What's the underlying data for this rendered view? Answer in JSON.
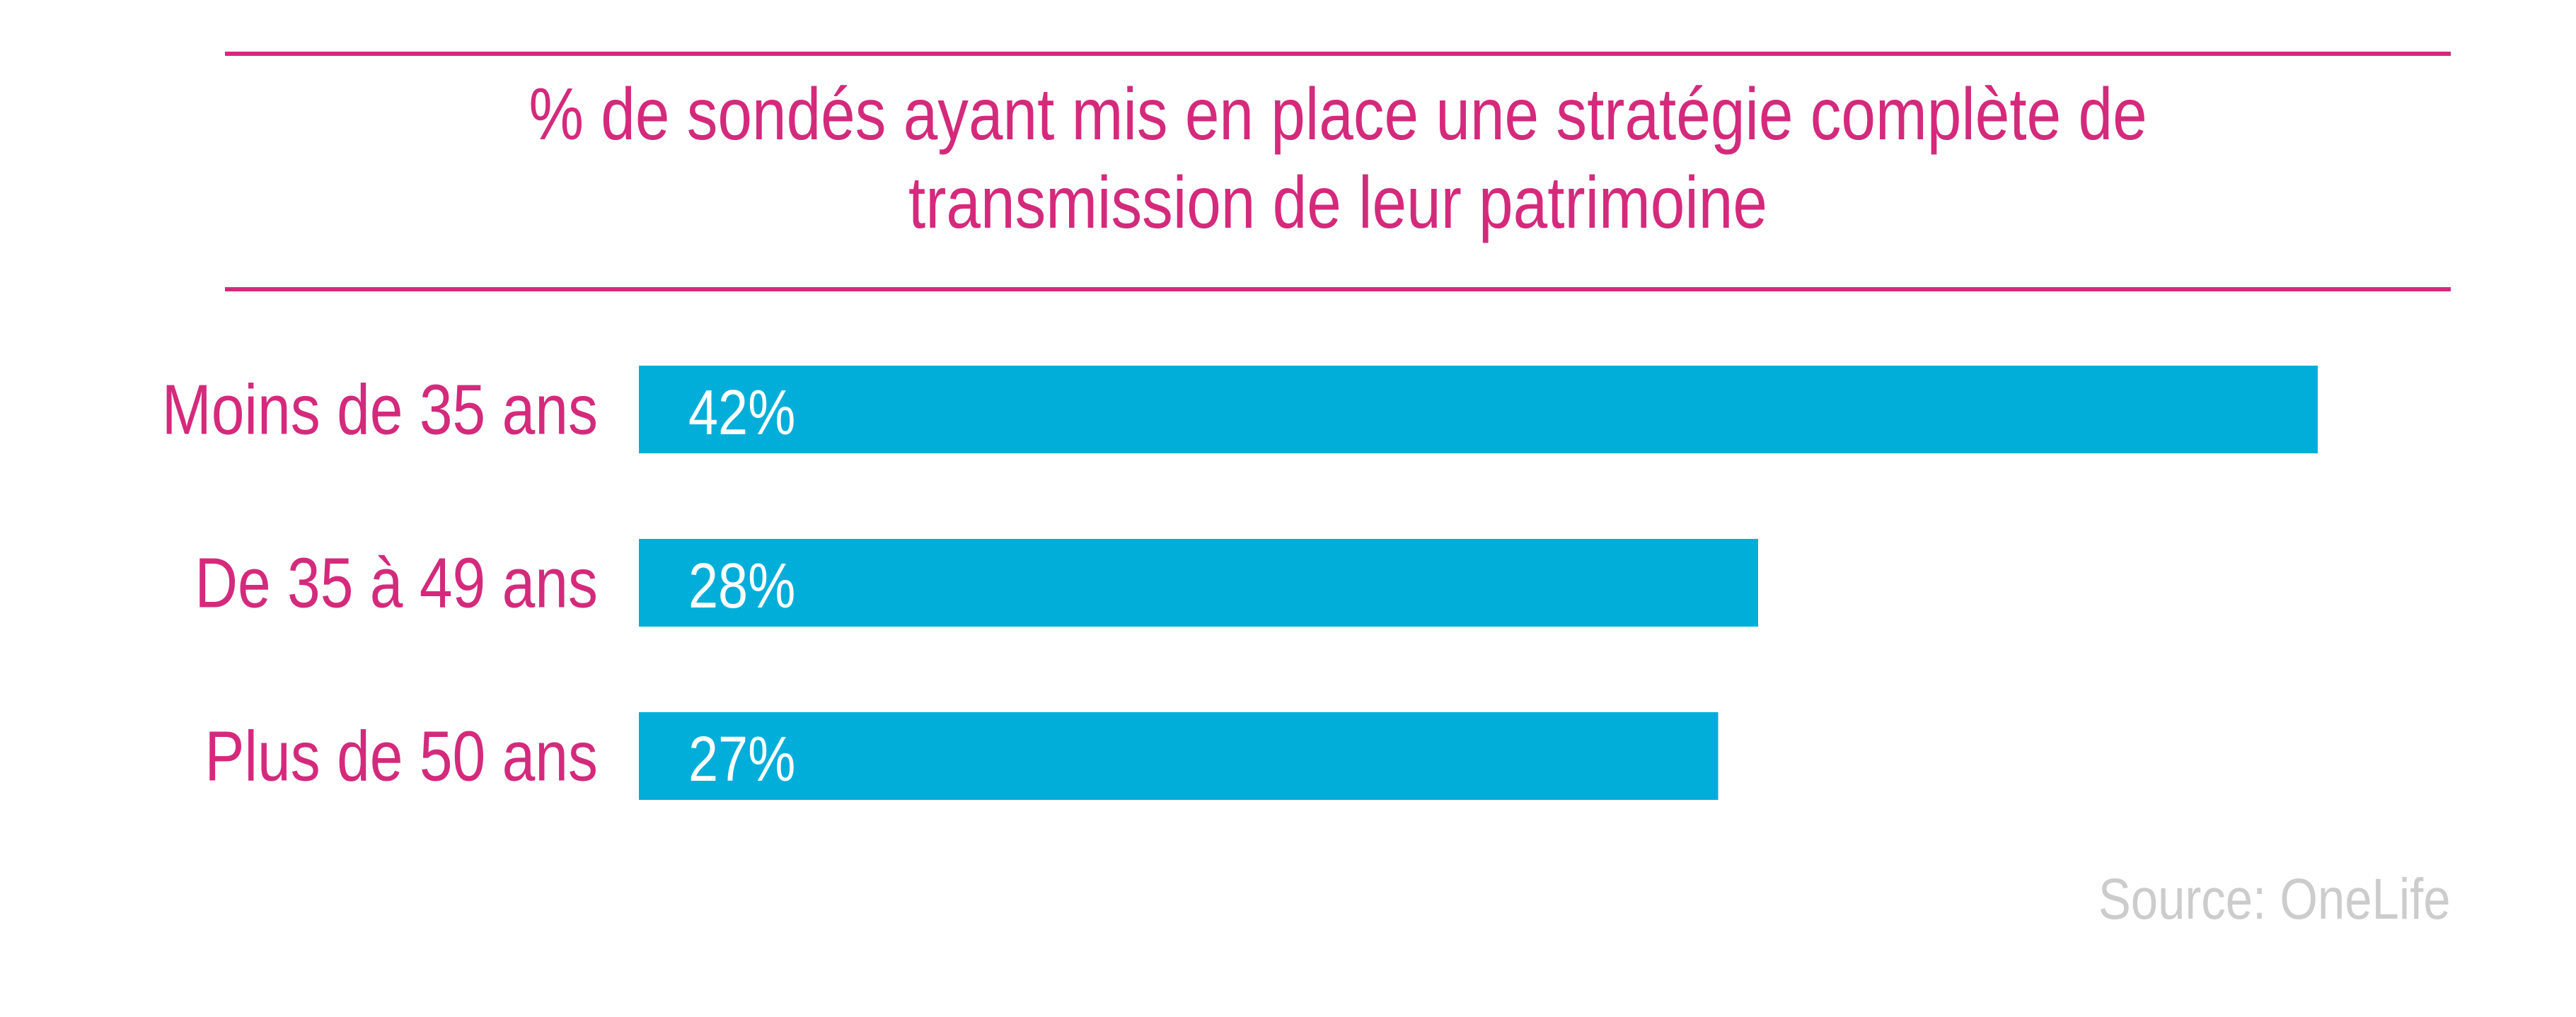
{
  "chart_data": {
    "type": "bar",
    "orientation": "horizontal",
    "title_lines": [
      "% de sondés ayant mis en place une stratégie complète de",
      "transmission de leur patrimoine"
    ],
    "categories": [
      "Moins de 35 ans",
      "De 35 à 49 ans",
      "Plus de 50 ans"
    ],
    "values": [
      42,
      28,
      27
    ],
    "value_labels": [
      "42%",
      "28%",
      "27%"
    ],
    "unit": "%",
    "xlim": [
      0,
      100
    ],
    "grid": false,
    "legend": "none"
  },
  "source": "Source: OneLife",
  "colors": {
    "accent": "#d42a7c",
    "bar": "#00aed9",
    "bar_label": "#ffffff",
    "source": "#cccccc"
  }
}
